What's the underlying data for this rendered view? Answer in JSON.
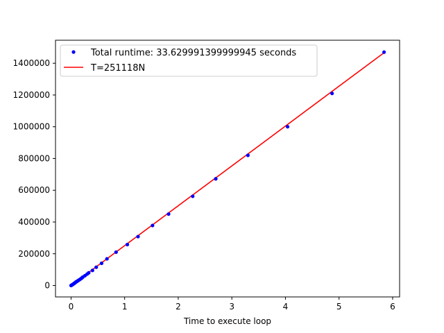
{
  "chart_data": {
    "type": "scatter",
    "title": "",
    "xlabel": "Time to execute loop",
    "ylabel": "",
    "xlim": [
      -0.29,
      6.13
    ],
    "ylim": [
      -72000,
      1545000
    ],
    "x_ticks": [
      0,
      1,
      2,
      3,
      4,
      5,
      6
    ],
    "y_ticks": [
      0,
      200000,
      400000,
      600000,
      800000,
      1000000,
      1200000,
      1400000
    ],
    "grid": false,
    "legend_position": "top-left",
    "series": [
      {
        "name": "Total runtime: 33.629991399999945 seconds",
        "kind": "points",
        "color": "#0000ff",
        "points": [
          [
            0.0,
            0
          ],
          [
            0.01,
            2000
          ],
          [
            0.02,
            4000
          ],
          [
            0.03,
            6500
          ],
          [
            0.04,
            9000
          ],
          [
            0.05,
            11000
          ],
          [
            0.06,
            13500
          ],
          [
            0.07,
            16000
          ],
          [
            0.08,
            19000
          ],
          [
            0.09,
            22000
          ],
          [
            0.1,
            24000
          ],
          [
            0.12,
            28000
          ],
          [
            0.14,
            33000
          ],
          [
            0.16,
            37000
          ],
          [
            0.18,
            42000
          ],
          [
            0.2,
            47000
          ],
          [
            0.22,
            53000
          ],
          [
            0.26,
            62000
          ],
          [
            0.3,
            72000
          ],
          [
            0.33,
            80000
          ],
          [
            0.4,
            95000
          ],
          [
            0.47,
            115000
          ],
          [
            0.57,
            140000
          ],
          [
            0.67,
            168000
          ],
          [
            0.84,
            210000
          ],
          [
            1.05,
            258000
          ],
          [
            1.25,
            308000
          ],
          [
            1.52,
            378000
          ],
          [
            1.82,
            450000
          ],
          [
            2.27,
            562000
          ],
          [
            2.7,
            672000
          ],
          [
            3.3,
            820000
          ],
          [
            4.04,
            1000000
          ],
          [
            4.87,
            1210000
          ],
          [
            5.84,
            1470000
          ]
        ]
      },
      {
        "name": "T=251118N",
        "kind": "line",
        "color": "#ff0000",
        "points": [
          [
            0.0,
            0
          ],
          [
            5.84,
            1466530
          ]
        ]
      }
    ]
  }
}
